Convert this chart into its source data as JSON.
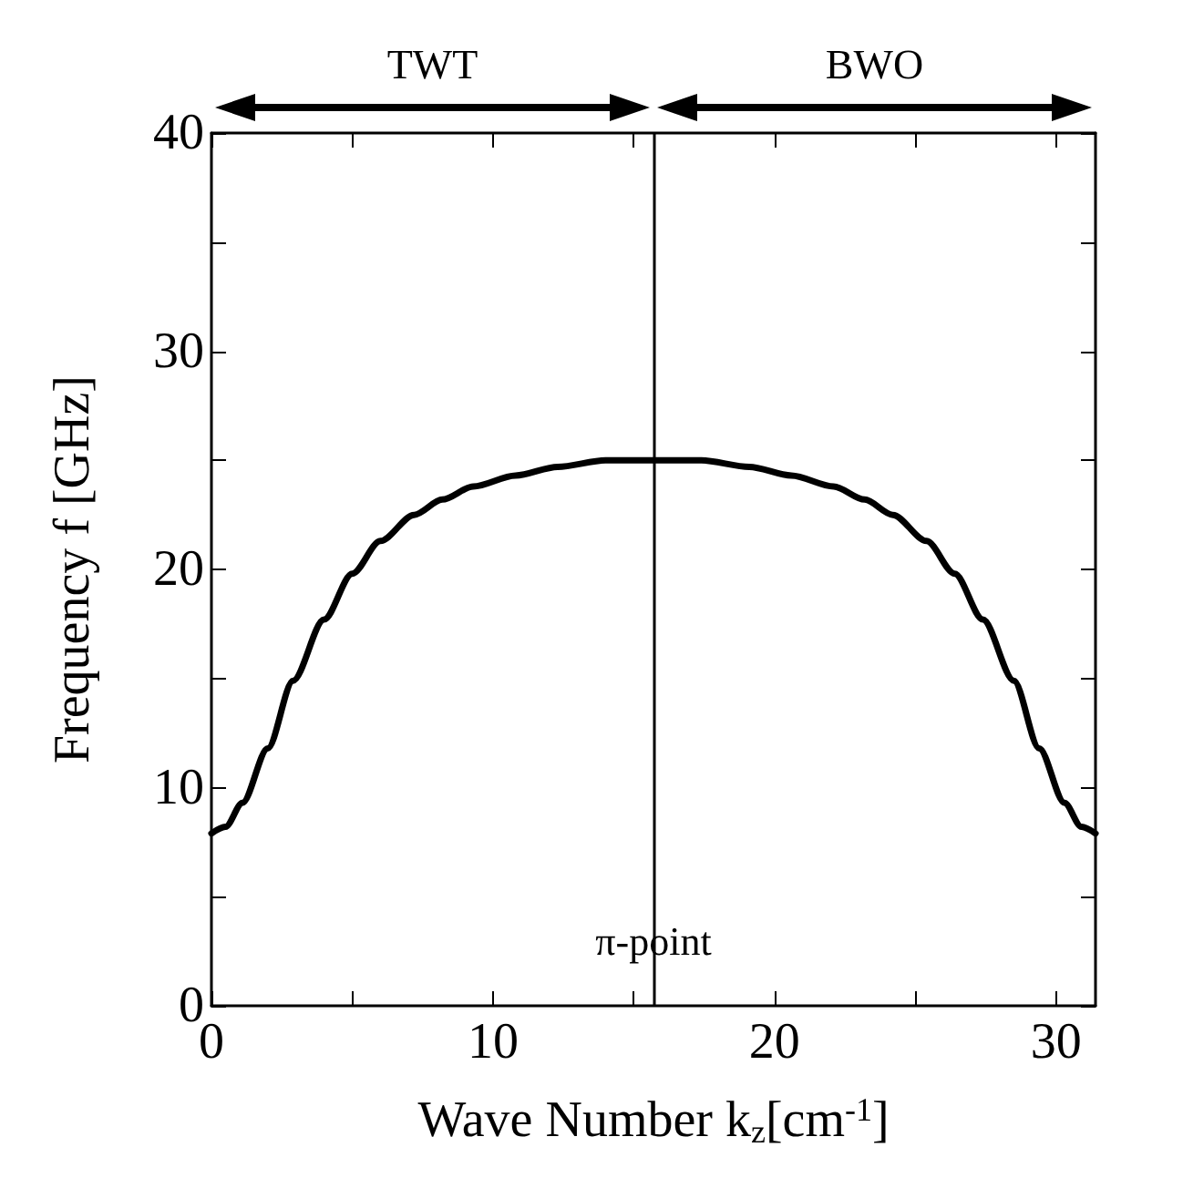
{
  "chart_data": {
    "type": "line",
    "xlabel": "Wave Number k$_{z}$[cm$^{-1}$]",
    "ylabel": "Frequency f [GHz]",
    "xlim": [
      0,
      31.4
    ],
    "xticks": [
      0,
      {
        "value": 5,
        "label": null
      },
      10,
      {
        "value": 15,
        "label": null
      },
      20,
      {
        "value": 25,
        "label": null
      },
      30
    ],
    "ylim": [
      0,
      40
    ],
    "yticks": [
      0,
      {
        "value": 5,
        "label": null
      },
      10,
      {
        "value": 15,
        "label": null
      },
      20,
      {
        "value": 25,
        "label": null
      },
      30,
      {
        "value": 35,
        "label": null
      },
      40
    ],
    "series": [
      {
        "color": "#000000",
        "x": [
          0,
          0.5,
          1.1,
          2,
          2.9,
          4,
          5,
          6,
          7.2,
          8.2,
          9.3,
          10.8,
          12.3,
          14,
          15.7,
          17.4,
          19.1,
          20.6,
          22.1,
          23.2,
          24.2,
          25.4,
          26.4,
          27.4,
          28.5,
          29.4,
          30.3,
          30.9,
          31.4
        ],
        "values": [
          7.9,
          8.2,
          9.3,
          11.8,
          14.9,
          17.7,
          19.8,
          21.3,
          22.5,
          23.2,
          23.8,
          24.3,
          24.7,
          25,
          25,
          25,
          24.7,
          24.3,
          23.8,
          23.2,
          22.5,
          21.3,
          19.8,
          17.7,
          14.9,
          11.8,
          9.3,
          8.2,
          7.9
        ]
      }
    ],
    "ref_lines": [
      {
        "axis": "x",
        "value": 15.7,
        "label": "π-point",
        "color": "#000000"
      }
    ],
    "annotations": [
      "TWT",
      "BWO"
    ],
    "grid": false,
    "marker": "none",
    "line_style": "solid"
  }
}
